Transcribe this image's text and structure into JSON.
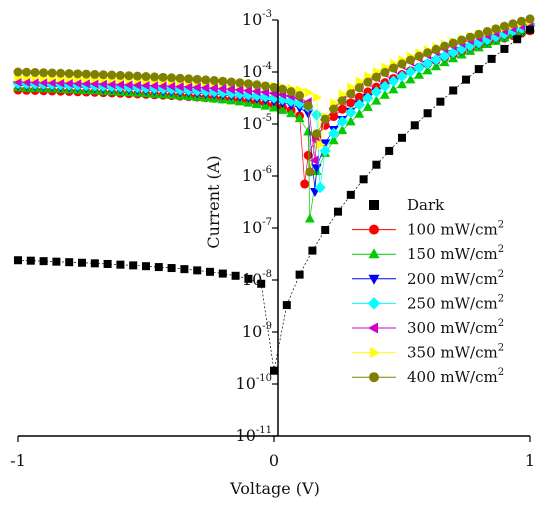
{
  "chart_data": {
    "type": "scatter",
    "title": "",
    "xlabel": "Voltage (V)",
    "ylabel": "Current (A)",
    "xlim": [
      -1,
      1
    ],
    "ylim_exp": [
      -11,
      -3
    ],
    "y_scale": "log",
    "grid": false,
    "legend_position": "right",
    "x_ticks": [
      {
        "label": "-1",
        "value": -1
      },
      {
        "label": "0",
        "value": 0
      },
      {
        "label": "1",
        "value": 1
      }
    ],
    "y_ticks": [
      {
        "base": "10",
        "exp": "-11",
        "value": -11
      },
      {
        "base": "10",
        "exp": "-10",
        "value": -10
      },
      {
        "base": "10",
        "exp": "-9",
        "value": -9
      },
      {
        "base": "10",
        "exp": "-8",
        "value": -8
      },
      {
        "base": "10",
        "exp": "-7",
        "value": -7
      },
      {
        "base": "10",
        "exp": "-6",
        "value": -6
      },
      {
        "base": "10",
        "exp": "-5",
        "value": -5
      },
      {
        "base": "10",
        "exp": "-4",
        "value": -4
      },
      {
        "base": "10",
        "exp": "-3",
        "value": -3
      }
    ],
    "series": [
      {
        "name": "Dark",
        "unit": "",
        "color": "#000000",
        "marker": "square",
        "vmin": 0.0,
        "Imin": 1.8e-10,
        "Ileft": 2.4e-08,
        "Iright": 0.00065
      },
      {
        "name": "100 mW/cm",
        "unit": "2",
        "color": "#ff0000",
        "marker": "circle",
        "vmin": 0.12,
        "Imin": 7e-07,
        "Ileft": 4.5e-05,
        "Iright": 0.00062
      },
      {
        "name": "150 mW/cm",
        "unit": "2",
        "color": "#00cc00",
        "marker": "triangle-up",
        "vmin": 0.14,
        "Imin": 1.5e-07,
        "Ileft": 5e-05,
        "Iright": 0.00068
      },
      {
        "name": "200 mW/cm",
        "unit": "2",
        "color": "#0000ff",
        "marker": "triangle-down",
        "vmin": 0.16,
        "Imin": 5e-07,
        "Ileft": 5.5e-05,
        "Iright": 0.00073
      },
      {
        "name": "250 mW/cm",
        "unit": "2",
        "color": "#00ffff",
        "marker": "diamond",
        "vmin": 0.18,
        "Imin": 6e-07,
        "Ileft": 6e-05,
        "Iright": 0.00078
      },
      {
        "name": "300 mW/cm",
        "unit": "2",
        "color": "#cc00cc",
        "marker": "triangle-left",
        "vmin": 0.16,
        "Imin": 2e-06,
        "Ileft": 6.5e-05,
        "Iright": 0.00085
      },
      {
        "name": "350 mW/cm",
        "unit": "2",
        "color": "#ffff00",
        "marker": "triangle-right",
        "vmin": 0.18,
        "Imin": 4e-06,
        "Ileft": 8e-05,
        "Iright": 0.00095
      },
      {
        "name": "400 mW/cm",
        "unit": "2",
        "color": "#808000",
        "marker": "circle",
        "vmin": 0.14,
        "Imin": 1.2e-06,
        "Ileft": 0.0001,
        "Iright": 0.00105
      }
    ]
  }
}
